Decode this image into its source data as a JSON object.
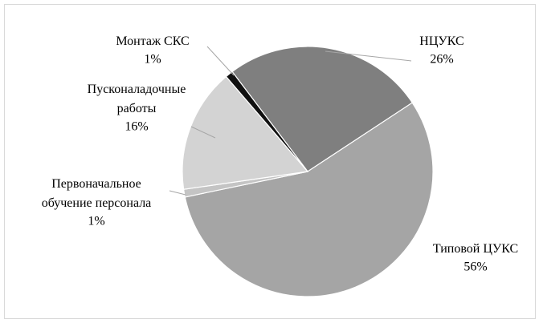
{
  "chart_data": {
    "type": "pie",
    "categories": [
      "НЦУКС",
      "Типовой ЦУКС",
      "Первоначальное обучение персонала",
      "Пусконаладочные работы",
      "Монтаж СКС"
    ],
    "values": [
      26,
      56,
      1,
      16,
      1
    ],
    "value_labels": [
      "26%",
      "56%",
      "1%",
      "16%",
      "1%"
    ],
    "colors": [
      "#7f7f7f",
      "#a5a5a5",
      "#c4c4c4",
      "#d3d3d3",
      "#111111"
    ]
  }
}
